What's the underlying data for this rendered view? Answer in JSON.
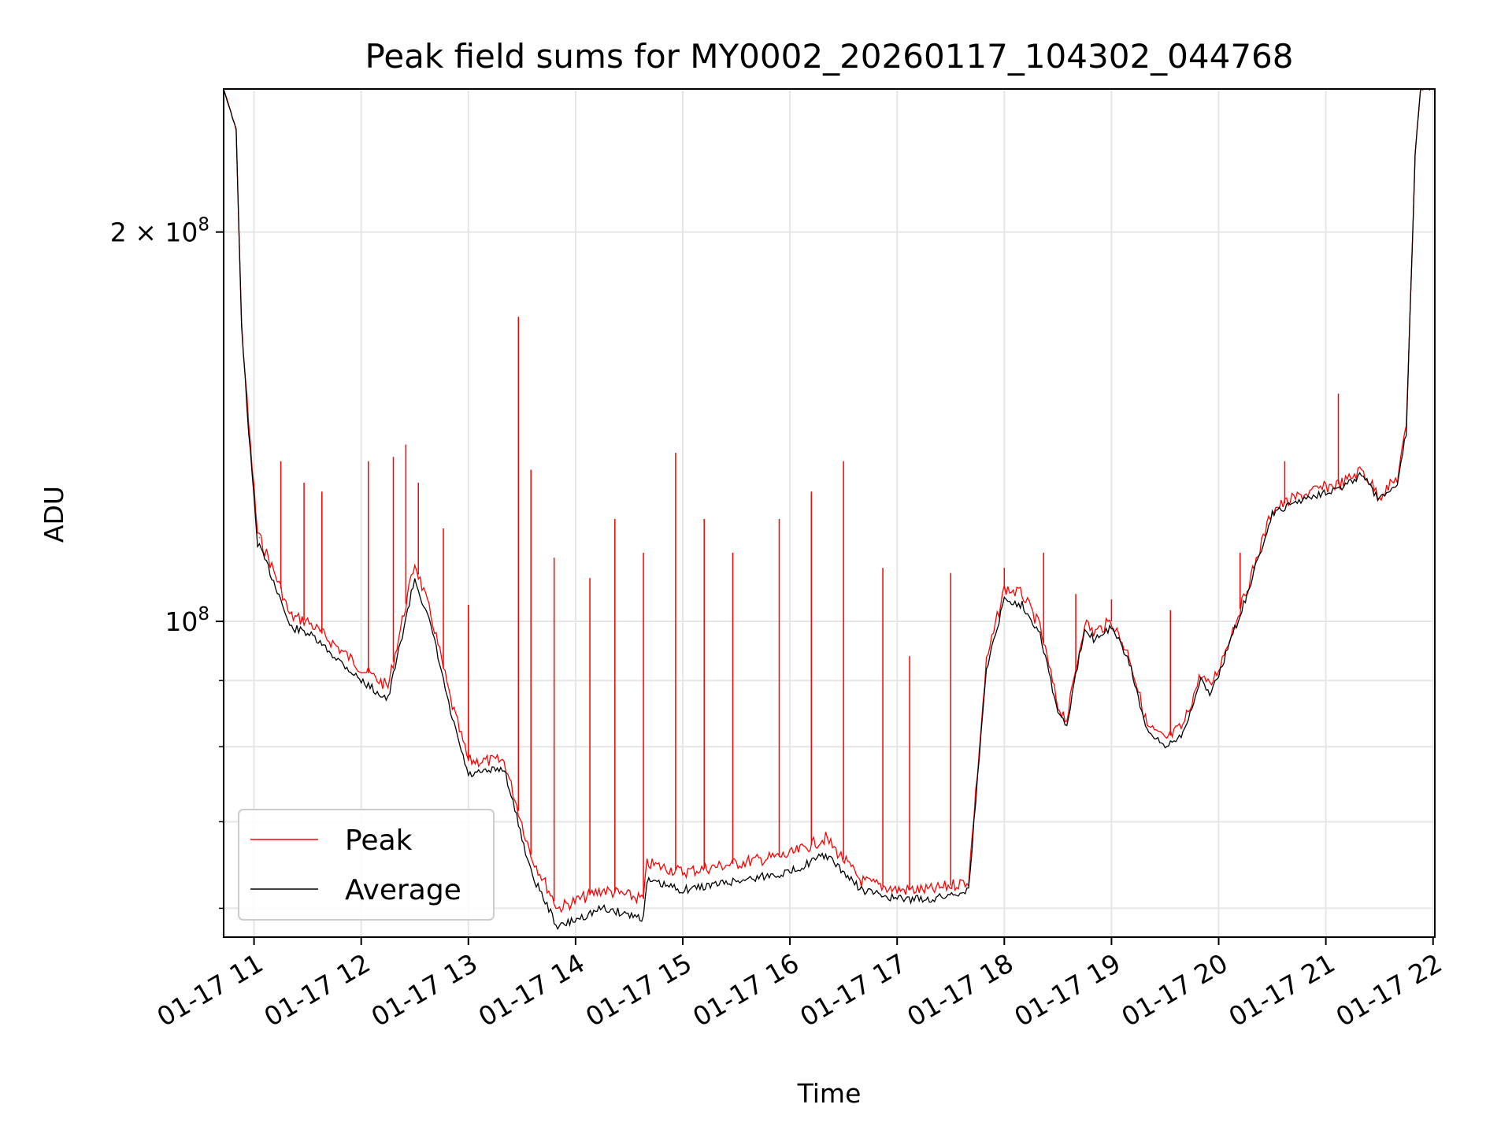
{
  "chart_data": {
    "type": "line",
    "title": "Peak field sums for MY0002_20260117_104302_044768",
    "xlabel": "Time",
    "ylabel": "ADU",
    "x_scale": "time",
    "y_scale": "log",
    "ylim": [
      57000000,
      258000000
    ],
    "xlim": [
      "2026-01-17 10:43",
      "2026-01-17 22:01"
    ],
    "grid": true,
    "legend_position": "lower-left",
    "x_ticks": [
      "2026-01-17 11:00",
      "2026-01-17 12:00",
      "2026-01-17 13:00",
      "2026-01-17 14:00",
      "2026-01-17 15:00",
      "2026-01-17 16:00",
      "2026-01-17 17:00",
      "2026-01-17 18:00",
      "2026-01-17 19:00",
      "2026-01-17 20:00",
      "2026-01-17 21:00",
      "2026-01-17 22:00"
    ],
    "x_tick_labels": [
      "01-17 11",
      "01-17 12",
      "01-17 13",
      "01-17 14",
      "01-17 15",
      "01-17 16",
      "01-17 17",
      "01-17 18",
      "01-17 19",
      "01-17 20",
      "01-17 21",
      "01-17 22"
    ],
    "y_major_ticks": [
      {
        "value": 200000000,
        "label_base": "2 × 10",
        "label_exp": "8"
      },
      {
        "value": 100000000,
        "label_base": "10",
        "label_exp": "8"
      }
    ],
    "y_minor_ticks": [
      60000000,
      70000000,
      80000000,
      90000000
    ],
    "x": [
      "2026-01-17 10:43",
      "2026-01-17 10:50",
      "2026-01-17 10:53",
      "2026-01-17 10:57",
      "2026-01-17 11:02",
      "2026-01-17 11:08",
      "2026-01-17 11:15",
      "2026-01-17 11:20",
      "2026-01-17 11:30",
      "2026-01-17 11:45",
      "2026-01-17 12:00",
      "2026-01-17 12:15",
      "2026-01-17 12:30",
      "2026-01-17 12:40",
      "2026-01-17 12:50",
      "2026-01-17 13:00",
      "2026-01-17 13:20",
      "2026-01-17 13:35",
      "2026-01-17 13:50",
      "2026-01-17 14:15",
      "2026-01-17 14:38",
      "2026-01-17 14:40",
      "2026-01-17 15:00",
      "2026-01-17 15:30",
      "2026-01-17 16:00",
      "2026-01-17 16:20",
      "2026-01-17 16:40",
      "2026-01-17 17:00",
      "2026-01-17 17:20",
      "2026-01-17 17:40",
      "2026-01-17 17:50",
      "2026-01-17 18:00",
      "2026-01-17 18:10",
      "2026-01-17 18:20",
      "2026-01-17 18:30",
      "2026-01-17 18:35",
      "2026-01-17 18:45",
      "2026-01-17 18:50",
      "2026-01-17 19:00",
      "2026-01-17 19:10",
      "2026-01-17 19:20",
      "2026-01-17 19:30",
      "2026-01-17 19:40",
      "2026-01-17 19:50",
      "2026-01-17 19:55",
      "2026-01-17 20:00",
      "2026-01-17 20:15",
      "2026-01-17 20:30",
      "2026-01-17 20:45",
      "2026-01-17 21:00",
      "2026-01-17 21:10",
      "2026-01-17 21:20",
      "2026-01-17 21:30",
      "2026-01-17 21:40",
      "2026-01-17 21:45",
      "2026-01-17 21:50",
      "2026-01-17 21:53",
      "2026-01-17 21:56",
      "2026-01-17 22:01"
    ],
    "series": [
      {
        "name": "Average",
        "color": "#000000",
        "values": [
          258000000,
          240000000,
          170000000,
          140000000,
          115000000,
          110000000,
          104000000,
          99000000,
          98000000,
          94000000,
          90000000,
          87000000,
          108000000,
          98000000,
          85000000,
          76000000,
          77000000,
          64000000,
          58000000,
          60000000,
          59000000,
          63000000,
          62000000,
          63000000,
          64000000,
          66000000,
          62000000,
          61000000,
          61000000,
          62000000,
          92000000,
          104000000,
          103000000,
          98000000,
          85000000,
          83000000,
          99000000,
          97000000,
          99000000,
          93000000,
          82000000,
          80000000,
          82000000,
          90000000,
          88000000,
          91000000,
          104000000,
          121000000,
          124000000,
          126000000,
          127000000,
          130000000,
          124000000,
          128000000,
          140000000,
          230000000,
          258000000,
          258000000,
          258000000
        ]
      },
      {
        "name": "Peak",
        "color": "#ff0000",
        "values": [
          258000000,
          240000000,
          170000000,
          142000000,
          117000000,
          112000000,
          106000000,
          101000000,
          100000000,
          96000000,
          92000000,
          89000000,
          111000000,
          100000000,
          87000000,
          78000000,
          78000000,
          66000000,
          60000000,
          62000000,
          61000000,
          65000000,
          64000000,
          65000000,
          66000000,
          68000000,
          63000000,
          62000000,
          62000000,
          63000000,
          93000000,
          106000000,
          105000000,
          99000000,
          86000000,
          84000000,
          100000000,
          98000000,
          100000000,
          94000000,
          83000000,
          81000000,
          83000000,
          91000000,
          89000000,
          92000000,
          105000000,
          122000000,
          125000000,
          127000000,
          128000000,
          131000000,
          125000000,
          129000000,
          141000000,
          230000000,
          258000000,
          258000000,
          258000000
        ],
        "spikes": {
          "x": [
            "2026-01-17 11:03",
            "2026-01-17 11:15",
            "2026-01-17 11:28",
            "2026-01-17 11:38",
            "2026-01-17 12:04",
            "2026-01-17 12:18",
            "2026-01-17 12:25",
            "2026-01-17 12:32",
            "2026-01-17 12:46",
            "2026-01-17 13:00",
            "2026-01-17 13:28",
            "2026-01-17 13:35",
            "2026-01-17 13:48",
            "2026-01-17 14:08",
            "2026-01-17 14:22",
            "2026-01-17 14:38",
            "2026-01-17 14:56",
            "2026-01-17 15:12",
            "2026-01-17 15:28",
            "2026-01-17 15:54",
            "2026-01-17 16:12",
            "2026-01-17 16:30",
            "2026-01-17 16:52",
            "2026-01-17 17:07",
            "2026-01-17 17:30",
            "2026-01-17 18:00",
            "2026-01-17 18:22",
            "2026-01-17 18:40",
            "2026-01-17 19:00",
            "2026-01-17 19:33",
            "2026-01-17 20:12",
            "2026-01-17 20:37",
            "2026-01-17 21:07",
            "2026-01-17 21:38"
          ],
          "values": [
            116000000,
            133000000,
            128000000,
            126000000,
            133000000,
            134000000,
            137000000,
            128000000,
            118000000,
            103000000,
            172000000,
            131000000,
            112000000,
            108000000,
            120000000,
            113000000,
            135000000,
            120000000,
            113000000,
            120000000,
            126000000,
            133000000,
            110000000,
            94000000,
            109000000,
            110000000,
            113000000,
            105000000,
            104000000,
            102000000,
            113000000,
            133000000,
            150000000,
            128000000
          ]
        }
      }
    ]
  }
}
